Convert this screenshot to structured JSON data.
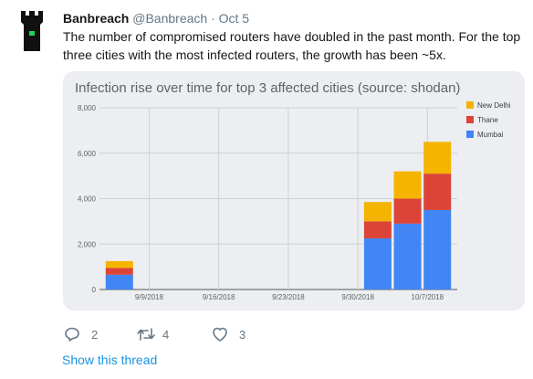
{
  "tweet": {
    "author_name": "Banbreach",
    "author_handle": "@Banbreach",
    "separator": "·",
    "date": "Oct 5",
    "text": "The number of compromised routers have doubled in the past month. For the top three cities with the most infected routers, the growth has been ~5x."
  },
  "avatar": {
    "icon": "castle-tower-icon",
    "colors": {
      "body": "#111111",
      "light": "#1fd64f"
    }
  },
  "actions": {
    "reply": {
      "icon": "reply-icon",
      "count": "2"
    },
    "retweet": {
      "icon": "retweet-icon",
      "count": "4"
    },
    "like": {
      "icon": "heart-icon",
      "count": "3"
    }
  },
  "show_thread": "Show this thread",
  "chart_data": {
    "type": "bar",
    "stacked": true,
    "title": "Infection rise over time for top 3 affected cities (source: shodan)",
    "x": [
      "9/6/2018",
      "10/2/2018",
      "10/5/2018",
      "10/8/2018"
    ],
    "xticks": [
      "9/9/2018",
      "9/16/2018",
      "9/23/2018",
      "9/30/2018",
      "10/7/2018"
    ],
    "xlim": [
      "9/4/2018",
      "10/10/2018"
    ],
    "yticks": [
      "0",
      "2,000",
      "4,000",
      "6,000",
      "8,000"
    ],
    "ylim": [
      0,
      8000
    ],
    "grid": true,
    "legend_position": "right",
    "series": [
      {
        "name": "Mumbai",
        "color": "#4285f4",
        "values": [
          650,
          2250,
          2900,
          3500
        ]
      },
      {
        "name": "Thane",
        "color": "#db4437",
        "values": [
          300,
          750,
          1100,
          1600
        ]
      },
      {
        "name": "New Delhi",
        "color": "#f4b400",
        "values": [
          300,
          850,
          1200,
          1400
        ]
      }
    ]
  }
}
